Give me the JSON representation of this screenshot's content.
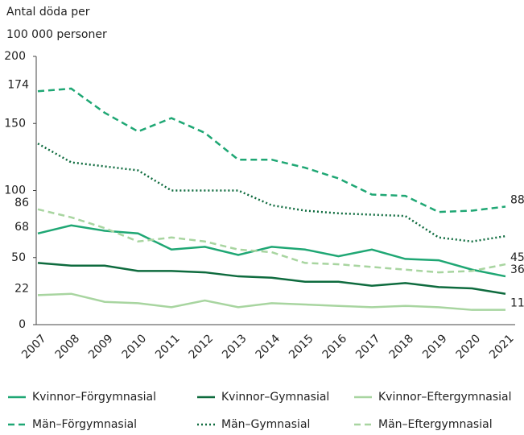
{
  "chart_data": {
    "type": "line",
    "y_label": [
      "Antal döda per",
      "100 000 personer"
    ],
    "categories": [
      "2007",
      "2008",
      "2009",
      "2010",
      "2011",
      "2012",
      "2013",
      "2014",
      "2015",
      "2016",
      "2017",
      "2018",
      "2019",
      "2020",
      "2021"
    ],
    "ylim": [
      0,
      200
    ],
    "yticks": [
      0,
      50,
      100,
      150,
      200
    ],
    "grid": false,
    "legend": "bottom",
    "series": [
      {
        "name": "Kvinnor–Förgymnasial",
        "color": "#1fa774",
        "dash": "solid",
        "values": [
          68,
          74,
          70,
          68,
          56,
          58,
          52,
          58,
          56,
          51,
          56,
          49,
          48,
          41,
          36
        ]
      },
      {
        "name": "Kvinnor–Gymnasial",
        "color": "#0e6b3e",
        "dash": "solid",
        "values": [
          46,
          44,
          44,
          40,
          40,
          39,
          36,
          35,
          32,
          32,
          29,
          31,
          28,
          27,
          23
        ]
      },
      {
        "name": "Kvinnor–Eftergymnasial",
        "color": "#a8d5a0",
        "dash": "solid",
        "values": [
          22,
          23,
          17,
          16,
          13,
          18,
          13,
          16,
          15,
          14,
          13,
          14,
          13,
          11,
          11
        ]
      },
      {
        "name": "Män–Förgymnasial",
        "color": "#1fa774",
        "dash": "dashed",
        "values": [
          174,
          176,
          158,
          144,
          154,
          143,
          123,
          123,
          117,
          109,
          97,
          96,
          84,
          85,
          88
        ]
      },
      {
        "name": "Män–Gymnasial",
        "color": "#0e6b3e",
        "dash": "dotted",
        "values": [
          135,
          121,
          118,
          115,
          100,
          100,
          100,
          89,
          85,
          83,
          82,
          81,
          65,
          62,
          66
        ]
      },
      {
        "name": "Män–Eftergymnasial",
        "color": "#a8d5a0",
        "dash": "dashed",
        "values": [
          86,
          80,
          72,
          62,
          65,
          62,
          56,
          54,
          46,
          45,
          43,
          41,
          39,
          40,
          45
        ]
      }
    ]
  }
}
